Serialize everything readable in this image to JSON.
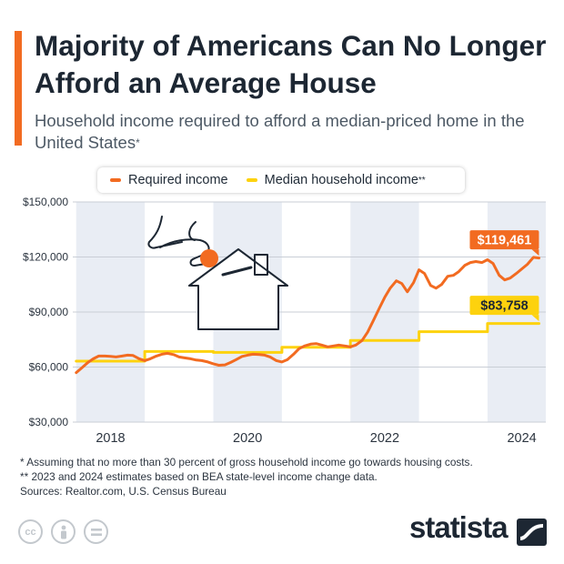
{
  "header": {
    "title": "Majority of Americans Can No Longer Afford an Average House",
    "subtitle": "Household income required to afford a median-priced home in the United States",
    "subtitle_mark": "*"
  },
  "legend": {
    "items": [
      {
        "label": "Required income",
        "mark": "",
        "color": "#f26b21"
      },
      {
        "label": "Median household income",
        "mark": "**",
        "color": "#fdd20e"
      }
    ]
  },
  "footnotes": {
    "note1": "*   Assuming that no more than 30 percent of gross household income go towards housing costs.",
    "note2": "** 2023 and 2024 estimates based on BEA state-level income change data.",
    "sources": "Sources: Realtor.com, U.S. Census Bureau"
  },
  "brand": {
    "name": "statista",
    "license_icons": [
      "cc-icon",
      "by-icon",
      "nd-icon"
    ]
  },
  "icons": {
    "illustration": "house-coin-hand-icon"
  },
  "colors": {
    "required": "#f26b21",
    "median": "#fdd20e",
    "band": "#e9edf4",
    "grid": "#c9ced6"
  },
  "chart_data": {
    "type": "line",
    "title": "",
    "xlabel": "",
    "ylabel": "",
    "ylim": [
      30000,
      150000
    ],
    "xlim": [
      2017.45,
      2024.35
    ],
    "yticks": [
      30000,
      60000,
      90000,
      120000,
      150000
    ],
    "ytick_labels": [
      "$30,000",
      "$60,000",
      "$90,000",
      "$120,000",
      "$150,000"
    ],
    "xticks": [
      2018,
      2020,
      2022,
      2024
    ],
    "xtick_labels": [
      "2018",
      "2020",
      "2022",
      "2024"
    ],
    "grid": true,
    "legend_position": "top",
    "series": [
      {
        "name": "Required income",
        "color": "#f26b21",
        "end_label": "$119,461",
        "points": [
          [
            2017.5,
            57000
          ],
          [
            2017.58,
            59500
          ],
          [
            2017.67,
            62500
          ],
          [
            2017.75,
            64500
          ],
          [
            2017.83,
            66000
          ],
          [
            2017.92,
            66000
          ],
          [
            2018.0,
            65800
          ],
          [
            2018.08,
            65500
          ],
          [
            2018.17,
            66000
          ],
          [
            2018.25,
            66500
          ],
          [
            2018.33,
            66300
          ],
          [
            2018.42,
            64500
          ],
          [
            2018.5,
            63500
          ],
          [
            2018.58,
            64500
          ],
          [
            2018.67,
            66000
          ],
          [
            2018.75,
            67000
          ],
          [
            2018.83,
            67500
          ],
          [
            2018.92,
            66800
          ],
          [
            2019.0,
            65500
          ],
          [
            2019.08,
            65000
          ],
          [
            2019.17,
            64500
          ],
          [
            2019.25,
            63800
          ],
          [
            2019.33,
            63500
          ],
          [
            2019.42,
            62800
          ],
          [
            2019.5,
            61800
          ],
          [
            2019.58,
            61000
          ],
          [
            2019.67,
            61200
          ],
          [
            2019.75,
            62500
          ],
          [
            2019.83,
            64000
          ],
          [
            2019.92,
            65800
          ],
          [
            2020.0,
            66500
          ],
          [
            2020.08,
            67000
          ],
          [
            2020.17,
            66800
          ],
          [
            2020.25,
            66500
          ],
          [
            2020.33,
            65500
          ],
          [
            2020.42,
            63500
          ],
          [
            2020.5,
            62800
          ],
          [
            2020.58,
            64000
          ],
          [
            2020.67,
            67000
          ],
          [
            2020.75,
            70000
          ],
          [
            2020.83,
            71500
          ],
          [
            2020.92,
            72500
          ],
          [
            2021.0,
            72800
          ],
          [
            2021.08,
            72000
          ],
          [
            2021.17,
            71000
          ],
          [
            2021.25,
            71500
          ],
          [
            2021.33,
            72000
          ],
          [
            2021.42,
            71500
          ],
          [
            2021.5,
            71000
          ],
          [
            2021.58,
            72000
          ],
          [
            2021.67,
            74500
          ],
          [
            2021.75,
            79000
          ],
          [
            2021.83,
            85000
          ],
          [
            2021.92,
            92000
          ],
          [
            2022.0,
            98000
          ],
          [
            2022.08,
            103000
          ],
          [
            2022.17,
            107000
          ],
          [
            2022.25,
            105500
          ],
          [
            2022.33,
            101000
          ],
          [
            2022.42,
            106000
          ],
          [
            2022.5,
            113000
          ],
          [
            2022.58,
            111000
          ],
          [
            2022.67,
            104500
          ],
          [
            2022.75,
            103000
          ],
          [
            2022.83,
            105000
          ],
          [
            2022.92,
            109500
          ],
          [
            2023.0,
            110000
          ],
          [
            2023.08,
            112000
          ],
          [
            2023.17,
            115500
          ],
          [
            2023.25,
            117000
          ],
          [
            2023.33,
            117500
          ],
          [
            2023.42,
            117000
          ],
          [
            2023.5,
            118500
          ],
          [
            2023.58,
            116500
          ],
          [
            2023.67,
            110000
          ],
          [
            2023.75,
            107500
          ],
          [
            2023.83,
            108500
          ],
          [
            2023.92,
            111000
          ],
          [
            2024.0,
            113500
          ],
          [
            2024.08,
            116000
          ],
          [
            2024.17,
            119800
          ],
          [
            2024.25,
            119461
          ]
        ]
      },
      {
        "name": "Median household income",
        "color": "#fdd20e",
        "end_label": "$83,758",
        "points": [
          [
            2017.5,
            63200
          ],
          [
            2018.5,
            63200
          ],
          [
            2018.5,
            68500
          ],
          [
            2019.5,
            68500
          ],
          [
            2019.5,
            68000
          ],
          [
            2020.5,
            68000
          ],
          [
            2020.5,
            70800
          ],
          [
            2021.5,
            70800
          ],
          [
            2021.5,
            74500
          ],
          [
            2022.5,
            74500
          ],
          [
            2022.5,
            79300
          ],
          [
            2023.5,
            79300
          ],
          [
            2023.5,
            83758
          ],
          [
            2024.25,
            83758
          ]
        ]
      }
    ]
  }
}
